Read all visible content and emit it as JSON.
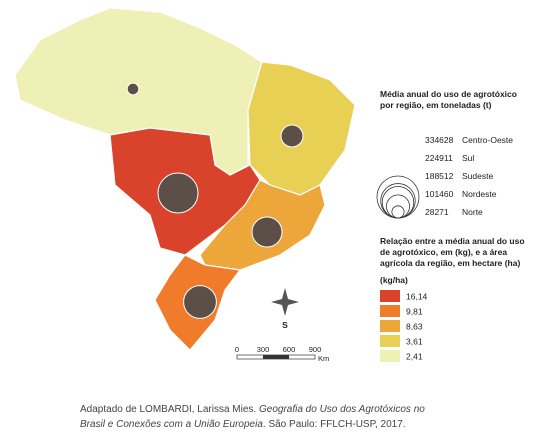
{
  "legend": {
    "circles_title": [
      "Média anual do uso de agrotóxico",
      "por região, em toneladas (t)"
    ],
    "circles": [
      {
        "value": 334628,
        "region": "Centro-Oeste"
      },
      {
        "value": 224911,
        "region": "Sul"
      },
      {
        "value": 188512,
        "region": "Sudeste"
      },
      {
        "value": 101460,
        "region": "Nordeste"
      },
      {
        "value": 28271,
        "region": "Norte"
      }
    ],
    "choropleth_title": [
      "Relação entre a média anual do uso",
      "de agrotóxico, em (kg), e a área",
      "agrícola da região, em hectare (ha)"
    ],
    "unit": "(kg/ha)",
    "classes": [
      {
        "label": "16,14",
        "color": "#d9432b"
      },
      {
        "label": "9,81",
        "color": "#f07b2b"
      },
      {
        "label": "8,63",
        "color": "#eda63a"
      },
      {
        "label": "3,61",
        "color": "#e8d055"
      },
      {
        "label": "2,41",
        "color": "#eef0b6"
      }
    ]
  },
  "scale": {
    "ticks": [
      "0",
      "300",
      "600",
      "900"
    ],
    "unit": "Km"
  },
  "compass": "S",
  "source": {
    "plain": "Adaptado de LOMBARDI, Larissa Mies. ",
    "italic1": "Geografia do Uso dos Agrotóxicos no",
    "italic2": "Brasil e Conexões com a União Europeia",
    "end": ". São Paulo: FFLCH-USP, 2017."
  }
}
